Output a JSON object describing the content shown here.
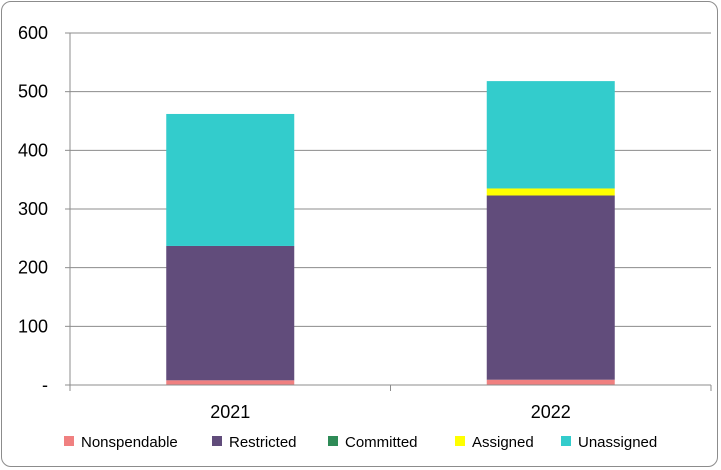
{
  "chart_data": {
    "type": "bar",
    "stacked": true,
    "title": "",
    "xlabel": "",
    "ylabel": "",
    "categories": [
      "2021",
      "2022"
    ],
    "ylim": [
      0,
      600
    ],
    "yticks": [
      0,
      100,
      200,
      300,
      400,
      500,
      600
    ],
    "ytick_labels": [
      "-",
      "100",
      "200",
      "300",
      "400",
      "500",
      "600"
    ],
    "grid": true,
    "legend_position": "bottom",
    "series": [
      {
        "name": "Nonspendable",
        "color": "#f08080",
        "values": [
          8,
          9
        ]
      },
      {
        "name": "Restricted",
        "color": "#614c7b",
        "values": [
          229,
          314
        ]
      },
      {
        "name": "Committed",
        "color": "#2e8b57",
        "values": [
          0,
          0
        ]
      },
      {
        "name": "Assigned",
        "color": "#ffff00",
        "values": [
          0,
          12
        ]
      },
      {
        "name": "Unassigned",
        "color": "#33cccc",
        "values": [
          225,
          183
        ]
      }
    ]
  }
}
